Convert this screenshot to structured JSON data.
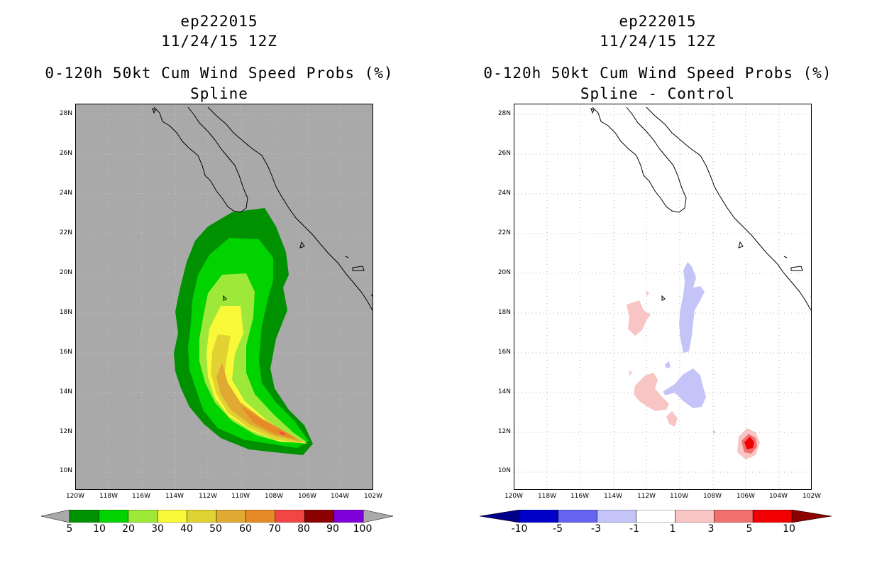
{
  "left_panel": {
    "title_line1": "ep222015",
    "title_line2": "11/24/15 12Z",
    "title_line3": "0-120h 50kt Cum Wind Speed Probs (%)",
    "title_line4": "Spline",
    "background_color": "#a9a9a9",
    "colorbar": {
      "colors": [
        "#009100",
        "#00d300",
        "#9ee83a",
        "#f9f93a",
        "#e0d232",
        "#e0a932",
        "#e68a28",
        "#f04646",
        "#8b0000",
        "#7f00d8"
      ],
      "labels": [
        "5",
        "10",
        "20",
        "30",
        "40",
        "50",
        "60",
        "70",
        "80",
        "90",
        "100"
      ]
    }
  },
  "right_panel": {
    "title_line1": "ep222015",
    "title_line2": "11/24/15 12Z",
    "title_line3": "0-120h 50kt Cum Wind Speed Probs (%)",
    "title_line4": "Spline - Control",
    "background_color": "#ffffff",
    "colorbar": {
      "colors": [
        "#0000c8",
        "#6464f0",
        "#c4c4f8",
        "#ffffff",
        "#f8c4c4",
        "#f07070",
        "#f00000"
      ],
      "end_low": "#00008b",
      "end_high": "#8b0000",
      "labels": [
        "-10",
        "-5",
        "-3",
        "-1",
        "1",
        "3",
        "5",
        "10"
      ]
    }
  },
  "axes": {
    "y_labels": [
      "28N",
      "26N",
      "24N",
      "22N",
      "20N",
      "18N",
      "16N",
      "14N",
      "12N",
      "10N"
    ],
    "x_labels": [
      "120W",
      "118W",
      "116W",
      "114W",
      "112W",
      "110W",
      "108W",
      "106W",
      "104W",
      "102W"
    ]
  }
}
